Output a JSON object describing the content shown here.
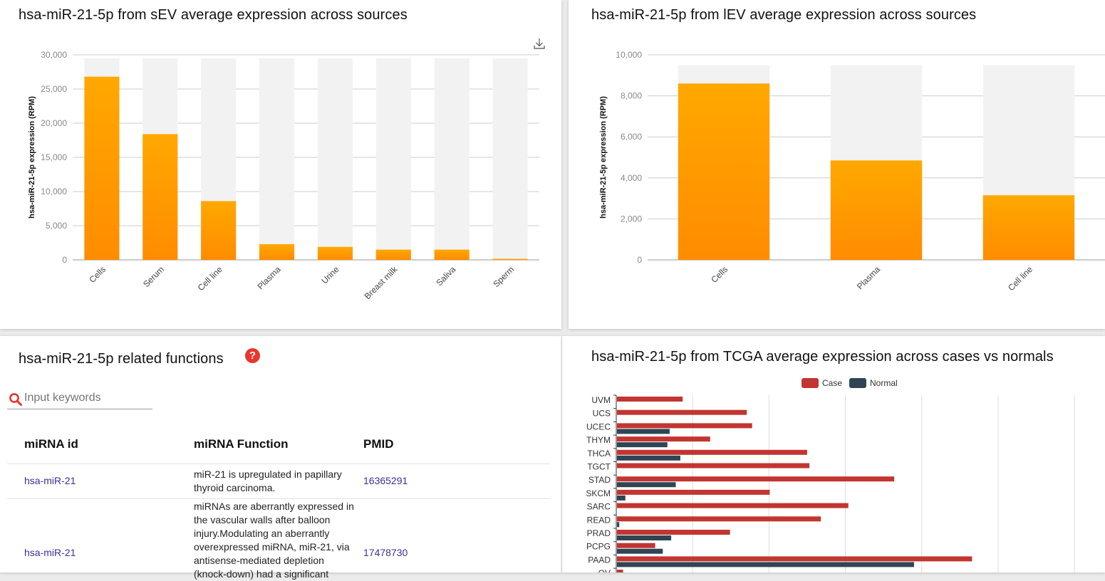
{
  "panels": {
    "sev_title": "hsa-miR-21-5p from sEV average expression across sources",
    "lev_title": "hsa-miR-21-5p from lEV average expression across sources",
    "func_title": "hsa-miR-21-5p related functions",
    "tcga_title": "hsa-miR-21-5p from TCGA average expression across cases vs normals"
  },
  "icons": {
    "download": "download-icon",
    "help": "help-icon",
    "help_glyph": "?",
    "search": "search-icon"
  },
  "colors": {
    "bar_top": "#FFA800",
    "bar_bottom": "#FF8C00",
    "bar_bg": "#F2F2F2",
    "case": "#C23531",
    "normal": "#2F4554",
    "link": "#3A2F9C",
    "help": "#E8372F"
  },
  "chart_data": [
    {
      "type": "bar",
      "title": "hsa-miR-21-5p from sEV average expression across sources",
      "ylabel": "hsa-miR-21-5p expression (RPM)",
      "categories": [
        "Cells",
        "Serum",
        "Cell line",
        "Plasma",
        "Urine",
        "Breast milk",
        "Saliva",
        "Sperm"
      ],
      "values": [
        26800,
        18400,
        8600,
        2300,
        1900,
        1500,
        1500,
        150
      ],
      "yticks": [
        "0",
        "5,000",
        "10,000",
        "15,000",
        "20,000",
        "25,000",
        "30,000"
      ],
      "ylim": [
        0,
        30000
      ],
      "background_bar_max": 29500,
      "grid": true
    },
    {
      "type": "bar",
      "title": "hsa-miR-21-5p from lEV average expression across sources",
      "ylabel": "hsa-miR-21-5p expression (RPM)",
      "categories": [
        "Cells",
        "Plasma",
        "Cell line"
      ],
      "values": [
        8600,
        4850,
        3150
      ],
      "yticks": [
        "0",
        "2,000",
        "4,000",
        "6,000",
        "8,000",
        "10,000"
      ],
      "ylim": [
        0,
        10000
      ],
      "background_bar_max": 9500,
      "grid": true
    },
    {
      "type": "bar",
      "orientation": "horizontal",
      "title": "hsa-miR-21-5p from TCGA average expression across cases vs normals",
      "legend": [
        "Case",
        "Normal"
      ],
      "legend_position": "top",
      "categories": [
        "UVM",
        "UCS",
        "UCEC",
        "THYM",
        "THCA",
        "TGCT",
        "STAD",
        "SKCM",
        "SARC",
        "READ",
        "PRAD",
        "PCPG",
        "PAAD",
        "OV"
      ],
      "series": [
        {
          "name": "Case",
          "values": [
            43000,
            85000,
            88500,
            61000,
            124500,
            126000,
            181500,
            100000,
            151500,
            133500,
            74000,
            25000,
            232500,
            4000
          ]
        },
        {
          "name": "Normal",
          "values": [
            null,
            null,
            34500,
            33000,
            41500,
            null,
            38500,
            5500,
            null,
            1500,
            35500,
            30000,
            194500,
            null
          ]
        }
      ],
      "xlim": [
        0,
        320000
      ],
      "grid": true
    }
  ],
  "functions": {
    "search_placeholder": "Input keywords",
    "columns": [
      "miRNA id",
      "miRNA Function",
      "PMID"
    ],
    "rows": [
      {
        "id": "hsa-miR-21",
        "function": "miR-21 is upregulated in papillary thyroid carcinoma.",
        "pmid": "16365291"
      },
      {
        "id": "hsa-miR-21",
        "function": "miRNAs are aberrantly expressed in the vascular walls after balloon injury.Modulating an aberrantly overexpressed miRNA, miR-21, via antisense-mediated depletion (knock-down) had a significant",
        "pmid": "17478730"
      }
    ]
  }
}
